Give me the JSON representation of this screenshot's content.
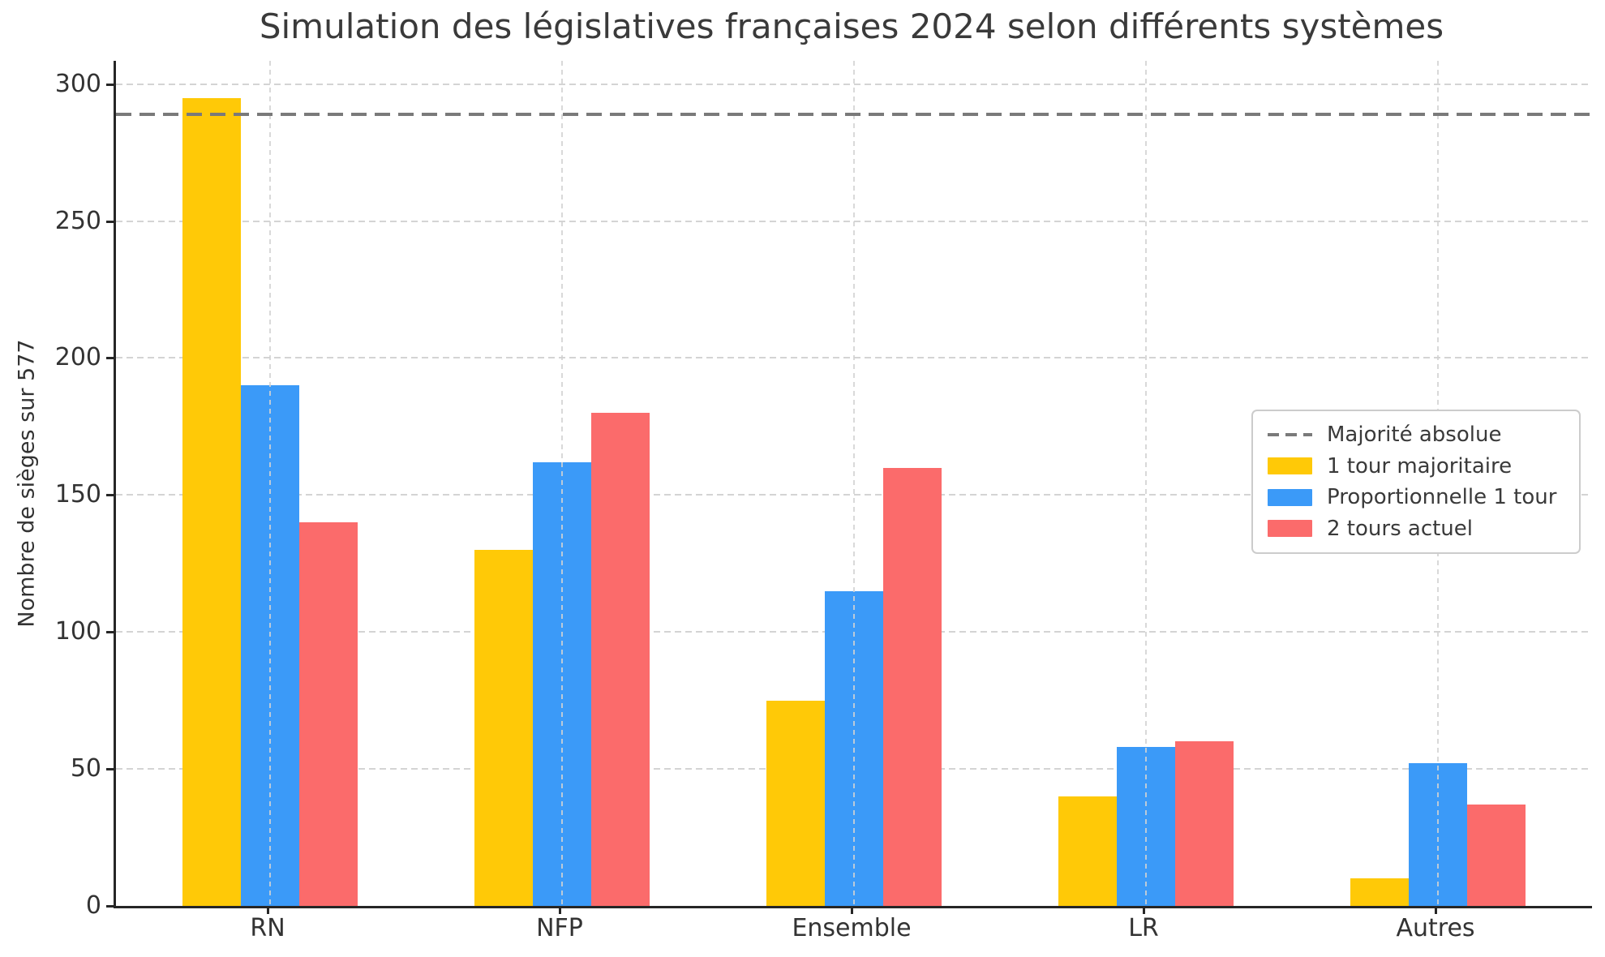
{
  "title": "Simulation des législatives françaises 2024 selon différents systèmes",
  "chart_data": {
    "type": "bar",
    "title": "Simulation des législatives françaises 2024 selon différents systèmes",
    "xlabel": "",
    "ylabel": "Nombre de sièges sur 577",
    "categories": [
      "RN",
      "NFP",
      "Ensemble",
      "LR",
      "Autres"
    ],
    "series": [
      {
        "name": "1 tour majoritaire",
        "color": "#FFC907",
        "values": [
          295,
          130,
          75,
          40,
          10
        ]
      },
      {
        "name": "Proportionnelle 1 tour",
        "color": "#3B9AF8",
        "values": [
          190,
          162,
          115,
          58,
          52
        ]
      },
      {
        "name": "2 tours actuel",
        "color": "#FB6B6B",
        "values": [
          140,
          180,
          160,
          60,
          37
        ]
      }
    ],
    "reference_line": {
      "label": "Majorité absolue",
      "value": 289,
      "color": "#7a7a7a",
      "style": "dashed"
    },
    "ylim": [
      0,
      308.5
    ],
    "yticks": [
      0,
      50,
      100,
      150,
      200,
      250,
      300
    ],
    "grid": true,
    "legend_position": "center-right"
  }
}
